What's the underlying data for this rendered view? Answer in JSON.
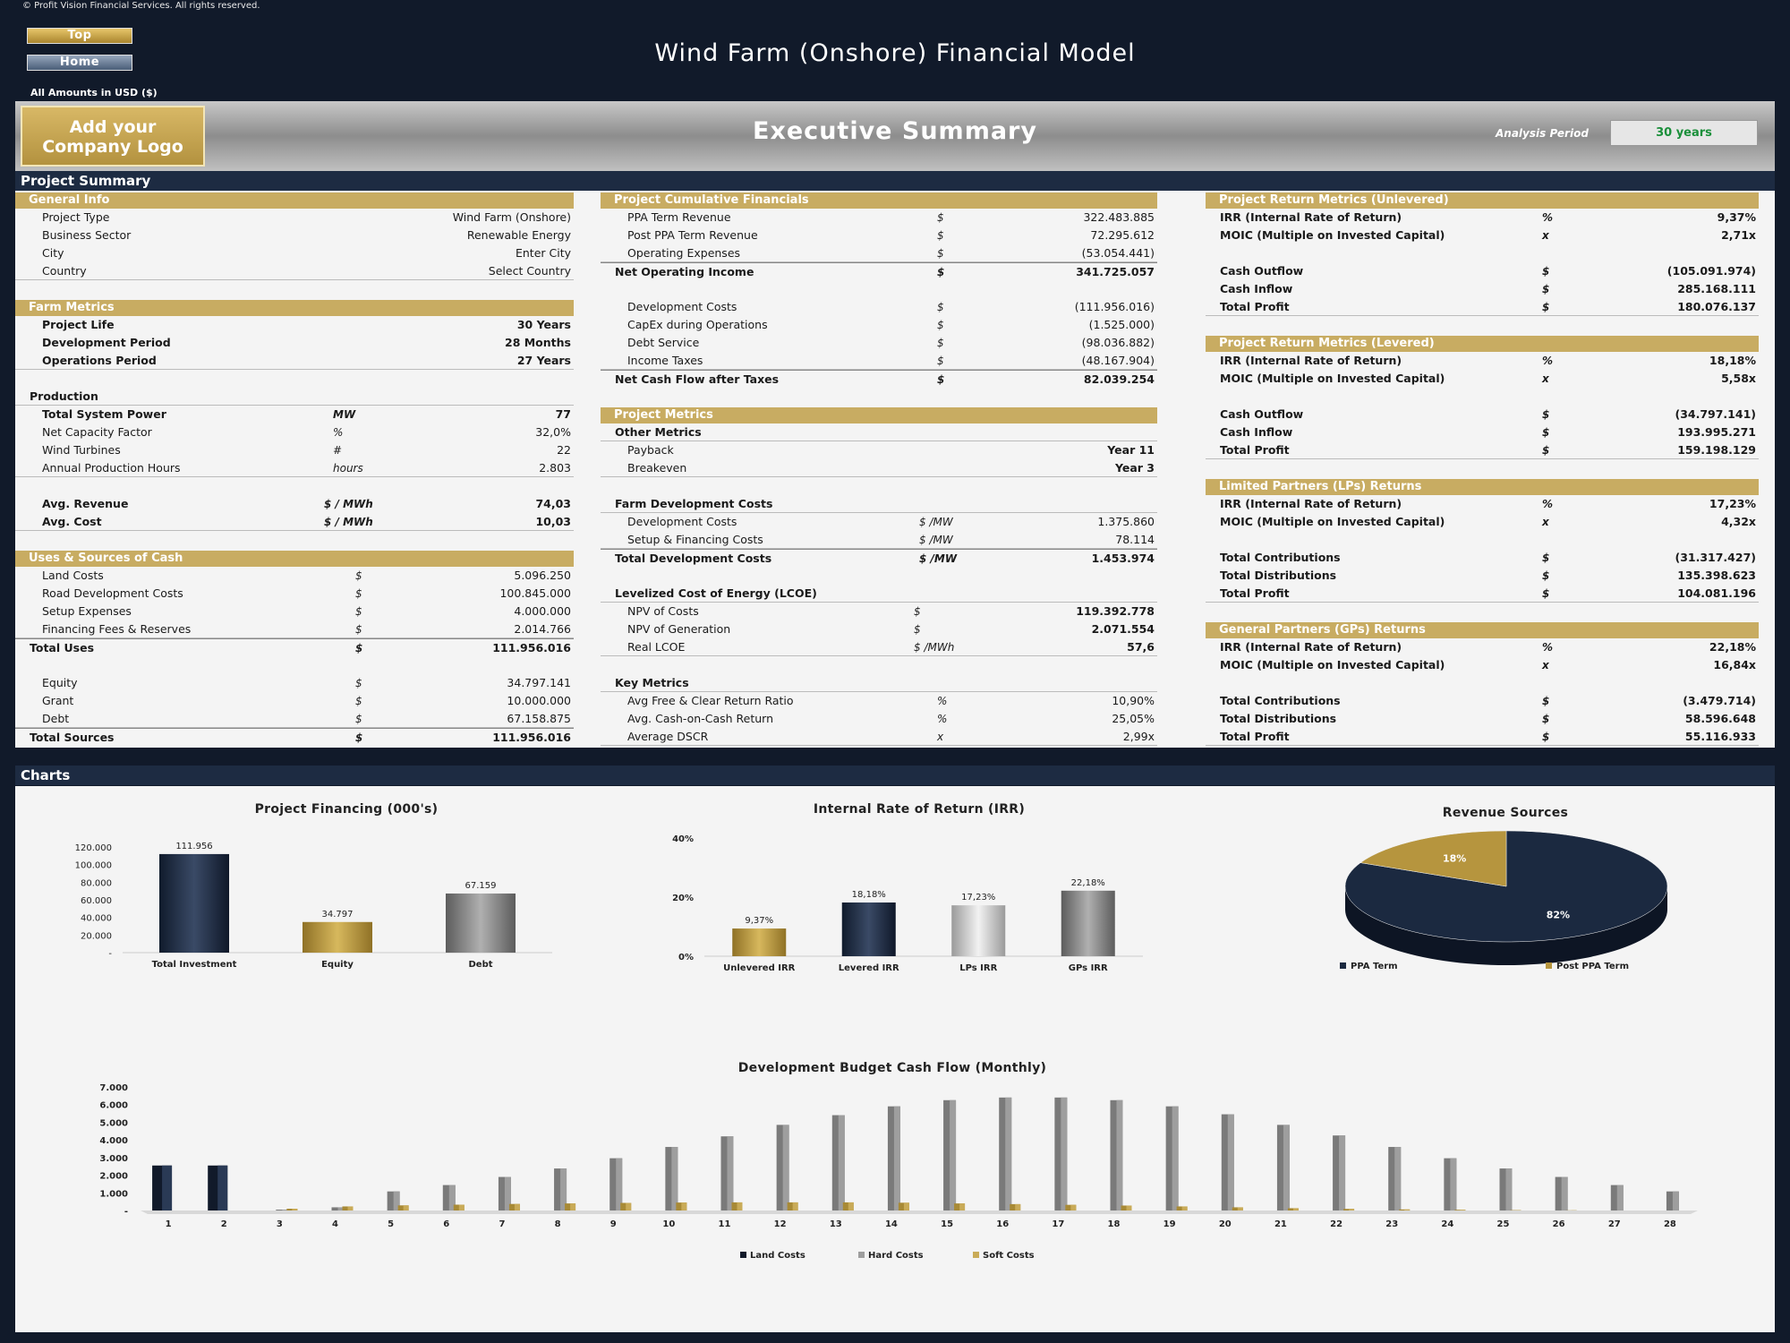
{
  "header": {
    "copyright": "© Profit Vision Financial Services. All rights reserved.",
    "top_btn": "Top",
    "home_btn": "Home",
    "title": "Wind Farm (Onshore) Financial Model",
    "amounts": "All Amounts in  USD ($)",
    "logo": "Add your Company Logo",
    "section": "Executive Summary",
    "analysis_label": "Analysis Period",
    "analysis_value": "30 years"
  },
  "bars": {
    "project_summary": "Project Summary",
    "charts": "Charts"
  },
  "general": {
    "title": "General Info",
    "rows": [
      [
        "Project Type",
        "Wind Farm (Onshore)"
      ],
      [
        "Business Sector",
        "Renewable Energy"
      ],
      [
        "City",
        "Enter City"
      ],
      [
        "Country",
        "Select Country"
      ]
    ]
  },
  "farm": {
    "title": "Farm Metrics",
    "rows": [
      [
        "Project Life",
        "30 Years"
      ],
      [
        "Development Period",
        "28 Months"
      ],
      [
        "Operations Period",
        "27 Years"
      ]
    ],
    "production_label": "Production",
    "prod_rows": [
      [
        "Total System Power",
        "MW",
        "77"
      ],
      [
        "Net Capacity Factor",
        "%",
        "32,0%"
      ],
      [
        "Wind Turbines",
        "#",
        "22"
      ],
      [
        "Annual Production Hours",
        "hours",
        "2.803"
      ]
    ],
    "avg_rows": [
      [
        "Avg. Revenue",
        "$ / MWh",
        "74,03"
      ],
      [
        "Avg. Cost",
        "$ / MWh",
        "10,03"
      ]
    ]
  },
  "uses": {
    "title": "Uses & Sources of Cash",
    "rows": [
      [
        "Land Costs",
        "$",
        "5.096.250"
      ],
      [
        "Road Development Costs",
        "$",
        "100.845.000"
      ],
      [
        "Setup Expenses",
        "$",
        "4.000.000"
      ],
      [
        "Financing Fees & Reserves",
        "$",
        "2.014.766"
      ]
    ],
    "total_uses": [
      "Total Uses",
      "$",
      "111.956.016"
    ],
    "src_rows": [
      [
        "Equity",
        "$",
        "34.797.141"
      ],
      [
        "Grant",
        "$",
        "10.000.000"
      ],
      [
        "Debt",
        "$",
        "67.158.875"
      ]
    ],
    "total_sources": [
      "Total Sources",
      "$",
      "111.956.016"
    ]
  },
  "cumulative": {
    "title": "Project Cumulative Financials",
    "rows": [
      [
        "PPA Term Revenue",
        "$",
        "322.483.885"
      ],
      [
        "Post PPA Term Revenue",
        "$",
        "72.295.612"
      ],
      [
        "Operating Expenses",
        "$",
        "(53.054.441)"
      ]
    ],
    "noi": [
      "Net Operating Income",
      "$",
      "341.725.057"
    ],
    "rows2": [
      [
        "Development Costs",
        "$",
        "(111.956.016)"
      ],
      [
        "CapEx during Operations",
        "$",
        "(1.525.000)"
      ],
      [
        "Debt Service",
        "$",
        "(98.036.882)"
      ],
      [
        "Income Taxes",
        "$",
        "(48.167.904)"
      ]
    ],
    "ncf": [
      "Net Cash Flow after Taxes",
      "$",
      "82.039.254"
    ]
  },
  "metrics": {
    "title": "Project Metrics",
    "other_label": "Other Metrics",
    "other_rows": [
      [
        "Payback",
        "",
        "Year 11"
      ],
      [
        "Breakeven",
        "",
        "Year 3"
      ]
    ],
    "fdc_label": "Farm Development Costs",
    "fdc_rows": [
      [
        "Development Costs",
        "$ /MW",
        "1.375.860"
      ],
      [
        "Setup & Financing Costs",
        "$ /MW",
        "78.114"
      ]
    ],
    "tdc": [
      "Total Development Costs",
      "$ /MW",
      "1.453.974"
    ],
    "lcoe_label": "Levelized Cost of Energy (LCOE)",
    "lcoe_rows": [
      [
        "NPV of Costs",
        "$",
        "119.392.778"
      ],
      [
        "NPV of Generation",
        "$",
        "2.071.554"
      ],
      [
        "Real LCOE",
        "$ /MWh",
        "57,6"
      ]
    ],
    "key_label": "Key Metrics",
    "key_rows": [
      [
        "Avg Free & Clear Return Ratio",
        "%",
        "10,90%"
      ],
      [
        "Avg. Cash-on-Cash Return",
        "%",
        "25,05%"
      ],
      [
        "Average DSCR",
        "x",
        "2,99x"
      ]
    ]
  },
  "unlevered": {
    "title": "Project Return Metrics (Unlevered)",
    "irr": [
      "IRR (Internal Rate of Return)",
      "%",
      "9,37%"
    ],
    "moic": [
      "MOIC (Multiple on Invested Capital)",
      "x",
      "2,71x"
    ],
    "rows": [
      [
        "Cash Outflow",
        "$",
        "(105.091.974)"
      ],
      [
        "Cash Inflow",
        "$",
        "285.168.111"
      ],
      [
        "Total Profit",
        "$",
        "180.076.137"
      ]
    ]
  },
  "levered": {
    "title": "Project Return Metrics (Levered)",
    "irr": [
      "IRR (Internal Rate of Return)",
      "%",
      "18,18%"
    ],
    "moic": [
      "MOIC (Multiple on Invested Capital)",
      "x",
      "5,58x"
    ],
    "rows": [
      [
        "Cash Outflow",
        "$",
        "(34.797.141)"
      ],
      [
        "Cash Inflow",
        "$",
        "193.995.271"
      ],
      [
        "Total Profit",
        "$",
        "159.198.129"
      ]
    ]
  },
  "lps": {
    "title": "Limited Partners (LPs) Returns",
    "irr": [
      "IRR (Internal Rate of Return)",
      "%",
      "17,23%"
    ],
    "moic": [
      "MOIC (Multiple on Invested Capital)",
      "x",
      "4,32x"
    ],
    "rows": [
      [
        "Total Contributions",
        "$",
        "(31.317.427)"
      ],
      [
        "Total Distributions",
        "$",
        "135.398.623"
      ],
      [
        "Total Profit",
        "$",
        "104.081.196"
      ]
    ]
  },
  "gps": {
    "title": "General Partners (GPs) Returns",
    "irr": [
      "IRR (Internal Rate of Return)",
      "%",
      "22,18%"
    ],
    "moic": [
      "MOIC (Multiple on Invested Capital)",
      "x",
      "16,84x"
    ],
    "rows": [
      [
        "Total Contributions",
        "$",
        "(3.479.714)"
      ],
      [
        "Total Distributions",
        "$",
        "58.596.648"
      ],
      [
        "Total Profit",
        "$",
        "55.116.933"
      ]
    ]
  },
  "colors": {
    "navy": "#1b2940",
    "gold": "#b6953e",
    "silver": "#b9b9b9",
    "gray": "#8a8a8a"
  },
  "chart_data": [
    {
      "type": "bar",
      "title": "Project Financing (000's)",
      "categories": [
        "Total Investment",
        "Equity",
        "Debt"
      ],
      "values": [
        111956,
        34797,
        67159
      ],
      "labels": [
        "111.956",
        "34.797",
        "67.159"
      ],
      "ylim": [
        0,
        120000
      ],
      "yticks": [
        "-",
        "20.000",
        "40.000",
        "60.000",
        "80.000",
        "100.000",
        "120.000"
      ]
    },
    {
      "type": "bar",
      "title": "Internal Rate of Return (IRR)",
      "categories": [
        "Unlevered IRR",
        "Levered IRR",
        "LPs IRR",
        "GPs IRR"
      ],
      "values": [
        9.37,
        18.18,
        17.23,
        22.18
      ],
      "labels": [
        "9,37%",
        "18,18%",
        "17,23%",
        "22,18%"
      ],
      "ylim": [
        0,
        40
      ],
      "yticks": [
        "0%",
        "20%",
        "40%"
      ]
    },
    {
      "type": "pie",
      "title": "Revenue Sources",
      "labels": [
        "PPA Term",
        "Post PPA Term"
      ],
      "values": [
        82,
        18
      ],
      "value_labels": [
        "82%",
        "18%"
      ],
      "legend": "bottom"
    },
    {
      "type": "bar",
      "title": "Development Budget Cash Flow (Monthly)",
      "categories": [
        "1",
        "2",
        "3",
        "4",
        "5",
        "6",
        "7",
        "8",
        "9",
        "10",
        "11",
        "12",
        "13",
        "14",
        "15",
        "16",
        "17",
        "18",
        "19",
        "20",
        "21",
        "22",
        "23",
        "24",
        "25",
        "26",
        "27",
        "28"
      ],
      "series": [
        {
          "name": "Land Costs",
          "values": [
            2548,
            2548,
            0,
            0,
            0,
            0,
            0,
            0,
            0,
            0,
            0,
            0,
            0,
            0,
            0,
            0,
            0,
            0,
            0,
            0,
            0,
            0,
            0,
            0,
            0,
            0,
            0,
            0
          ]
        },
        {
          "name": "Hard Costs",
          "values": [
            0,
            0,
            50,
            180,
            1080,
            1440,
            1900,
            2380,
            2960,
            3600,
            4200,
            4850,
            5400,
            5900,
            6250,
            6400,
            6400,
            6250,
            5900,
            5450,
            4850,
            4250,
            3600,
            2960,
            2380,
            1900,
            1440,
            1080
          ]
        },
        {
          "name": "Soft Costs",
          "values": [
            0,
            0,
            100,
            230,
            290,
            330,
            370,
            400,
            430,
            450,
            460,
            460,
            460,
            440,
            400,
            360,
            320,
            280,
            230,
            180,
            130,
            90,
            60,
            40,
            20,
            10,
            0,
            0
          ]
        }
      ],
      "ylim": [
        0,
        7000
      ],
      "yticks": [
        "-",
        "1.000",
        "2.000",
        "3.000",
        "4.000",
        "5.000",
        "6.000",
        "7.000"
      ],
      "legend": "bottom"
    }
  ]
}
